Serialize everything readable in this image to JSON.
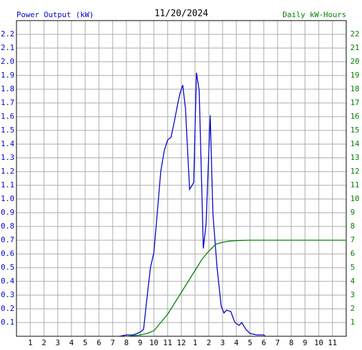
{
  "chart_data": {
    "type": "line",
    "title": "11/20/2024",
    "y_label": "Power Output (kW)",
    "y2_label": "Daily kW-Hours",
    "xlim": [
      0,
      24
    ],
    "xticks": [
      1,
      2,
      3,
      4,
      5,
      6,
      7,
      8,
      9,
      10,
      11,
      12,
      {
        "value": 13,
        "label": "1"
      },
      {
        "value": 14,
        "label": "2"
      },
      {
        "value": 15,
        "label": "3"
      },
      {
        "value": 16,
        "label": "4"
      },
      {
        "value": 17,
        "label": "5"
      },
      {
        "value": 18,
        "label": "6"
      },
      {
        "value": 19,
        "label": "7"
      },
      {
        "value": 20,
        "label": "8"
      },
      {
        "value": 21,
        "label": "9"
      },
      {
        "value": 22,
        "label": "10"
      },
      {
        "value": 23,
        "label": "11"
      }
    ],
    "ylim": [
      0,
      2.3
    ],
    "yticks": [
      0.1,
      0.2,
      0.3,
      0.4,
      0.5,
      0.6,
      0.7,
      0.8,
      0.9,
      {
        "value": 1,
        "label": "1.0"
      },
      1.1,
      1.2,
      1.3,
      1.4,
      1.5,
      1.6,
      1.7,
      1.8,
      1.9,
      {
        "value": 2,
        "label": "2.0"
      },
      2.1,
      2.2
    ],
    "y2lim": [
      0,
      23
    ],
    "y2ticks": [
      1,
      2,
      3,
      4,
      5,
      6,
      7,
      8,
      9,
      10,
      11,
      12,
      13,
      14,
      15,
      16,
      17,
      18,
      19,
      20,
      21,
      22
    ],
    "grid": true,
    "series": [
      {
        "name": "Power Output (kW)",
        "color": "#0000cc",
        "x": [
          7.5,
          8,
          8.5,
          9,
          9.25,
          9.5,
          9.75,
          10,
          10.25,
          10.5,
          10.75,
          11,
          11.25,
          11.5,
          11.75,
          11.9,
          12.1,
          12.3,
          12.6,
          12.9,
          13.1,
          13.3,
          13.6,
          13.8,
          14.1,
          14.3,
          14.6,
          14.9,
          15.1,
          15.3,
          15.6,
          15.9,
          16.2,
          16.4,
          16.7,
          17,
          17.5,
          18,
          18.1
        ],
        "values": [
          0,
          0.01,
          0.01,
          0.03,
          0.05,
          0.28,
          0.5,
          0.61,
          0.9,
          1.2,
          1.35,
          1.43,
          1.45,
          1.57,
          1.7,
          1.77,
          1.83,
          1.66,
          1.07,
          1.12,
          1.92,
          1.79,
          0.64,
          0.82,
          1.61,
          0.89,
          0.5,
          0.22,
          0.17,
          0.19,
          0.18,
          0.1,
          0.08,
          0.1,
          0.05,
          0.02,
          0.01,
          0.01,
          0
        ]
      },
      {
        "name": "Daily kW-Hours",
        "color": "#008000",
        "axis": "y2",
        "x": [
          8,
          9,
          9.5,
          10,
          10.5,
          11,
          11.5,
          12,
          12.5,
          13,
          13.5,
          14,
          14.5,
          15,
          15.5,
          16,
          17,
          24
        ],
        "values": [
          0,
          0.1,
          0.2,
          0.4,
          1.0,
          1.6,
          2.4,
          3.2,
          4.0,
          4.8,
          5.6,
          6.2,
          6.7,
          6.85,
          6.93,
          6.97,
          7.0,
          7.0
        ]
      }
    ]
  }
}
